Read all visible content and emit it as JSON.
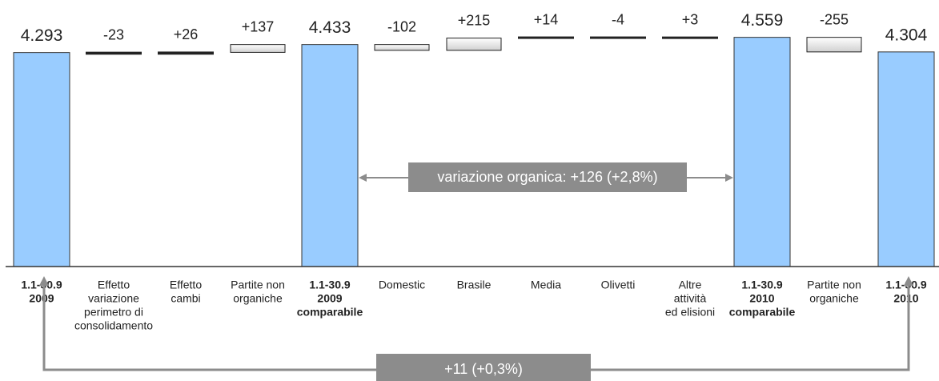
{
  "chart_data": {
    "type": "waterfall",
    "categories": [
      [
        "1.1-30.9",
        "2009"
      ],
      [
        "Effetto",
        "variazione",
        "perimetro di",
        "consolidamento"
      ],
      [
        "Effetto",
        "cambi"
      ],
      [
        "Partite non",
        "organiche"
      ],
      [
        "1.1-30.9",
        "2009",
        "comparabile"
      ],
      [
        "Domestic"
      ],
      [
        "Brasile"
      ],
      [
        "Media"
      ],
      [
        "Olivetti"
      ],
      [
        "Altre",
        "attività",
        "ed elisioni"
      ],
      [
        "1.1-30.9",
        "2010",
        "comparabile"
      ],
      [
        "Partite non",
        "organiche"
      ],
      [
        "1.1-30.9",
        "2010"
      ]
    ],
    "measure": [
      "absolute",
      "relative",
      "relative",
      "relative",
      "absolute",
      "relative",
      "relative",
      "relative",
      "relative",
      "relative",
      "absolute",
      "relative",
      "absolute"
    ],
    "values": [
      4293,
      -23,
      26,
      137,
      4433,
      -102,
      215,
      14,
      -4,
      3,
      4559,
      -255,
      4304
    ],
    "value_labels": [
      "4.293",
      "-23",
      "+26",
      "+137",
      "4.433",
      "-102",
      "+215",
      "+14",
      "-4",
      "+3",
      "4.559",
      "-255",
      "4.304"
    ],
    "total_color": "#99ccff",
    "delta_color": "#d0d0d0",
    "ylim": [
      550,
      4750
    ],
    "annotations": [
      "variazione organica: +126 (+2,8%)",
      "+11 (+0,3%)"
    ],
    "annotation_color": "#8c8c8c"
  }
}
